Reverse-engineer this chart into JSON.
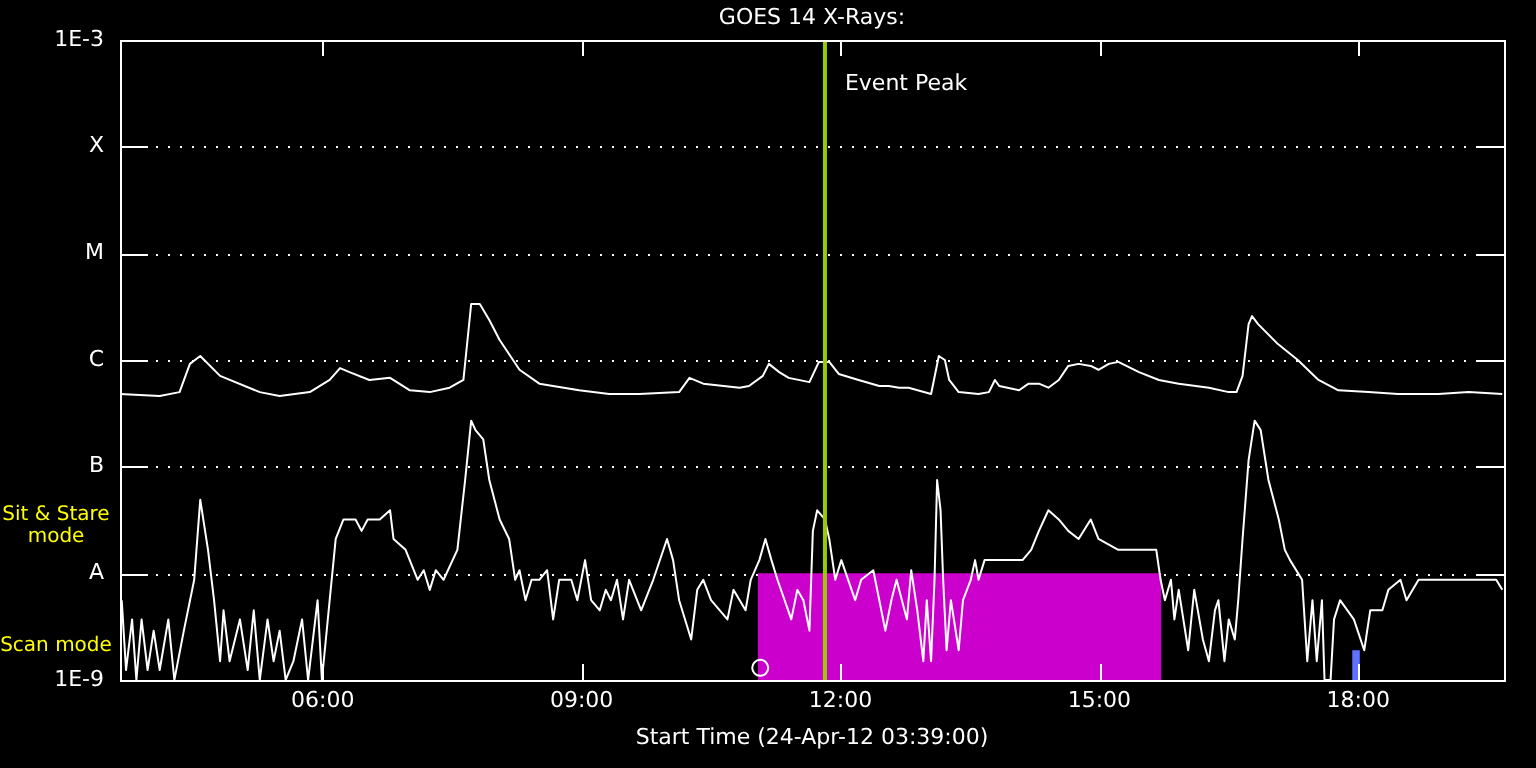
{
  "chart_data": {
    "type": "line",
    "title": "GOES 14 X-Rays:",
    "xlabel": "Start Time (24-Apr-12 03:39:00)",
    "log": "y",
    "grid": "y",
    "legend": false,
    "marker": "none",
    "line_style": "solid",
    "xlim": [
      3.65,
      19.69
    ],
    "xticks": [
      {
        "value": 6,
        "label": "06:00"
      },
      {
        "value": 9,
        "label": "09:00"
      },
      {
        "value": 12,
        "label": "12:00"
      },
      {
        "value": 15,
        "label": "15:00"
      },
      {
        "value": 18,
        "label": "18:00"
      }
    ],
    "ylim": [
      1e-09,
      0.001
    ],
    "yticks": [
      {
        "value": 1e-09,
        "label": "1E-9"
      },
      {
        "value": 1e-08,
        "label": "A"
      },
      {
        "value": 1e-07,
        "label": "B"
      },
      {
        "value": 1e-06,
        "label": "C"
      },
      {
        "value": 1e-05,
        "label": "M"
      },
      {
        "value": 0.0001,
        "label": "X"
      },
      {
        "value": 0.001,
        "label": "1E-3"
      }
    ],
    "ref_lines": [
      {
        "axis": "x",
        "value": 11.82,
        "label": "Event Peak",
        "color": "#99cc00"
      }
    ],
    "annotations": [
      "Sit & Stare mode",
      "Scan mode"
    ],
    "series": [
      {
        "type": "area",
        "color": "#cc00cc",
        "x": [
          11.04,
          15.72
        ],
        "values": [
          1e-08,
          1e-08
        ]
      },
      {
        "type": "area",
        "color": "#6070ff",
        "x": [
          17.93,
          18.02
        ],
        "values": [
          1.9e-09,
          1.9e-09
        ]
      },
      {
        "color": "#ffffff",
        "x": [
          3.65,
          4.11,
          4.34,
          4.46,
          4.58,
          4.81,
          5.27,
          5.5,
          5.85,
          6.08,
          6.2,
          6.31,
          6.54,
          6.78,
          7.01,
          7.24,
          7.47,
          7.63,
          7.72,
          7.82,
          7.93,
          8.05,
          8.28,
          8.51,
          8.97,
          9.32,
          9.67,
          10.13,
          10.25,
          10.41,
          10.83,
          10.94,
          11.1,
          11.17,
          11.29,
          11.4,
          11.64,
          11.75,
          11.87,
          11.98,
          12.21,
          12.45,
          12.56,
          12.68,
          12.79,
          13.05,
          13.14,
          13.21,
          13.26,
          13.37,
          13.6,
          13.72,
          13.79,
          13.84,
          14.07,
          14.18,
          14.3,
          14.41,
          14.53,
          14.64,
          14.76,
          14.9,
          14.99,
          15.11,
          15.22,
          15.46,
          15.69,
          15.92,
          16.27,
          16.5,
          16.59,
          16.66,
          16.73,
          16.77,
          16.84,
          17.07,
          17.3,
          17.54,
          17.77,
          18.12,
          18.46,
          18.93,
          19.28,
          19.67
        ],
        "values": [
          4.8e-07,
          4.6e-07,
          5e-07,
          9.2e-07,
          1.09e-06,
          7.1e-07,
          5e-07,
          4.6e-07,
          5e-07,
          6.5e-07,
          8.4e-07,
          7.7e-07,
          6.5e-07,
          6.8e-07,
          5.2e-07,
          5e-07,
          5.5e-07,
          6.5e-07,
          3.35e-06,
          3.35e-06,
          2.37e-06,
          1.54e-06,
          8.1e-07,
          6e-07,
          5.2e-07,
          4.8e-07,
          4.8e-07,
          5e-07,
          6.8e-07,
          6e-07,
          5.5e-07,
          5.7e-07,
          7.1e-07,
          9.2e-07,
          7.7e-07,
          6.8e-07,
          6.2e-07,
          9.6e-07,
          9.6e-07,
          7.4e-07,
          6.5e-07,
          5.7e-07,
          5.7e-07,
          5.5e-07,
          5.5e-07,
          4.8e-07,
          1.09e-06,
          1e-06,
          6.5e-07,
          5e-07,
          4.8e-07,
          5e-07,
          6.5e-07,
          5.7e-07,
          5.2e-07,
          6e-07,
          6e-07,
          5.5e-07,
          6.5e-07,
          8.8e-07,
          9.2e-07,
          8.8e-07,
          8.1e-07,
          9.2e-07,
          9.6e-07,
          7.7e-07,
          6.5e-07,
          6e-07,
          5.5e-07,
          5e-07,
          5e-07,
          7.1e-07,
          2.17e-06,
          2.58e-06,
          2.17e-06,
          1.41e-06,
          1e-06,
          6.5e-07,
          5.2e-07,
          5e-07,
          4.8e-07,
          4.8e-07,
          5e-07,
          4.8e-07
        ]
      },
      {
        "color": "#ffffff",
        "x": [
          3.67,
          3.72,
          3.79,
          3.84,
          3.9,
          3.97,
          4.04,
          4.11,
          4.21,
          4.28,
          4.39,
          4.51,
          4.58,
          4.67,
          4.74,
          4.81,
          4.85,
          4.92,
          5.04,
          5.13,
          5.2,
          5.27,
          5.36,
          5.43,
          5.5,
          5.57,
          5.66,
          5.76,
          5.83,
          5.94,
          5.99,
          6.08,
          6.15,
          6.24,
          6.38,
          6.45,
          6.52,
          6.66,
          6.78,
          6.82,
          6.96,
          7.1,
          7.17,
          7.24,
          7.31,
          7.4,
          7.56,
          7.65,
          7.72,
          7.77,
          7.86,
          7.93,
          8.05,
          8.16,
          8.23,
          8.28,
          8.35,
          8.42,
          8.51,
          8.6,
          8.67,
          8.74,
          8.88,
          8.95,
          9.04,
          9.11,
          9.21,
          9.28,
          9.34,
          9.41,
          9.48,
          9.55,
          9.69,
          9.83,
          9.99,
          10.06,
          10.13,
          10.27,
          10.34,
          10.41,
          10.5,
          10.69,
          10.76,
          10.9,
          10.96,
          11.06,
          11.13,
          11.2,
          11.27,
          11.43,
          11.5,
          11.57,
          11.64,
          11.68,
          11.73,
          11.82,
          11.87,
          11.94,
          12.01,
          12.17,
          12.24,
          12.38,
          12.45,
          12.52,
          12.59,
          12.65,
          12.77,
          12.82,
          12.89,
          12.96,
          13.0,
          13.05,
          13.09,
          13.12,
          13.16,
          13.19,
          13.23,
          13.28,
          13.37,
          13.42,
          13.51,
          13.56,
          13.6,
          13.67,
          13.81,
          13.97,
          14.11,
          14.21,
          14.3,
          14.41,
          14.53,
          14.64,
          14.76,
          14.9,
          14.99,
          15.22,
          15.57,
          15.66,
          15.71,
          15.76,
          15.83,
          15.87,
          15.92,
          16.03,
          16.1,
          16.2,
          16.27,
          16.34,
          16.38,
          16.45,
          16.5,
          16.57,
          16.61,
          16.66,
          16.73,
          16.8,
          16.87,
          16.96,
          17.08,
          17.15,
          17.21,
          17.35,
          17.41,
          17.47,
          17.52,
          17.58,
          17.61,
          17.68,
          17.72,
          17.79,
          17.95,
          18.07,
          18.14,
          18.28,
          18.35,
          18.49,
          18.56,
          18.7,
          18.84,
          19.0,
          19.16,
          19.32,
          19.46,
          19.6,
          19.67
        ],
        "values": [
          5.6e-09,
          1.24e-09,
          3.7e-09,
          1e-09,
          3.7e-09,
          1.24e-09,
          2.9e-09,
          1.24e-09,
          3.7e-09,
          1e-09,
          2.9e-09,
          8.7e-09,
          4.9e-08,
          1.66e-08,
          5.6e-09,
          1.5e-09,
          4.5e-09,
          1.5e-09,
          3.7e-09,
          1.24e-09,
          4.5e-09,
          1e-09,
          3.7e-09,
          1.5e-09,
          2.9e-09,
          1e-09,
          1.5e-09,
          3.7e-09,
          1e-09,
          5.6e-09,
          1e-09,
          5.6e-09,
          2.1e-08,
          3.2e-08,
          3.2e-08,
          2.5e-08,
          3.2e-08,
          3.2e-08,
          3.9e-08,
          2.1e-08,
          1.66e-08,
          8.7e-09,
          1.07e-08,
          7e-09,
          1.07e-08,
          8.7e-09,
          1.66e-08,
          7.5e-08,
          2.7e-07,
          2.2e-07,
          1.8e-07,
          7.5e-08,
          3.2e-08,
          2.1e-08,
          8.7e-09,
          1.07e-08,
          5.6e-09,
          8.7e-09,
          8.7e-09,
          1.07e-08,
          3.7e-09,
          8.7e-09,
          8.7e-09,
          5.6e-09,
          1.33e-08,
          5.6e-09,
          4.5e-09,
          7e-09,
          5.6e-09,
          8.7e-09,
          3.7e-09,
          8.7e-09,
          4.5e-09,
          8.7e-09,
          2.1e-08,
          1.33e-08,
          5.6e-09,
          2.4e-09,
          7e-09,
          8.7e-09,
          5.6e-09,
          3.7e-09,
          7e-09,
          4.5e-09,
          8.7e-09,
          1.33e-08,
          2.1e-08,
          1.33e-08,
          8.7e-09,
          3.7e-09,
          7e-09,
          5.6e-09,
          2.9e-09,
          2.5e-08,
          3.9e-08,
          3.2e-08,
          2.1e-08,
          8.7e-09,
          1.33e-08,
          5.6e-09,
          8.7e-09,
          1.07e-08,
          5.6e-09,
          2.9e-09,
          5.6e-09,
          8.7e-09,
          3.7e-09,
          1.07e-08,
          4.5e-09,
          1.5e-09,
          5.6e-09,
          1.5e-09,
          8.7e-09,
          7.5e-08,
          3.9e-08,
          8.7e-09,
          1.9e-09,
          5.6e-09,
          1.9e-09,
          5.6e-09,
          8.7e-09,
          1.33e-08,
          8.7e-09,
          1.33e-08,
          1.33e-08,
          1.33e-08,
          1.33e-08,
          1.66e-08,
          2.5e-08,
          3.9e-08,
          3.2e-08,
          2.5e-08,
          2.1e-08,
          3.2e-08,
          2.1e-08,
          1.66e-08,
          1.66e-08,
          1.66e-08,
          8.7e-09,
          5.6e-09,
          8.7e-09,
          3.7e-09,
          7e-09,
          1.9e-09,
          7e-09,
          2.4e-09,
          1.5e-09,
          4.5e-09,
          5.6e-09,
          1.5e-09,
          3.7e-09,
          2.4e-09,
          5.6e-09,
          2.1e-08,
          1.15e-07,
          2.7e-07,
          2.2e-07,
          7.5e-08,
          3.2e-08,
          1.66e-08,
          1.33e-08,
          8.7e-09,
          1.5e-09,
          5.6e-09,
          1.5e-09,
          5.6e-09,
          1e-09,
          1e-09,
          3.7e-09,
          5.6e-09,
          3.7e-09,
          1.9e-09,
          4.5e-09,
          4.5e-09,
          7e-09,
          8.7e-09,
          5.6e-09,
          8.7e-09,
          8.7e-09,
          8.7e-09,
          8.7e-09,
          8.7e-09,
          8.7e-09,
          8.7e-09,
          7e-09
        ]
      },
      {
        "type": "scatter",
        "color": "#ffffff",
        "marker": "circle",
        "x": [
          11.07
        ],
        "values": [
          1.3e-09
        ]
      }
    ]
  }
}
